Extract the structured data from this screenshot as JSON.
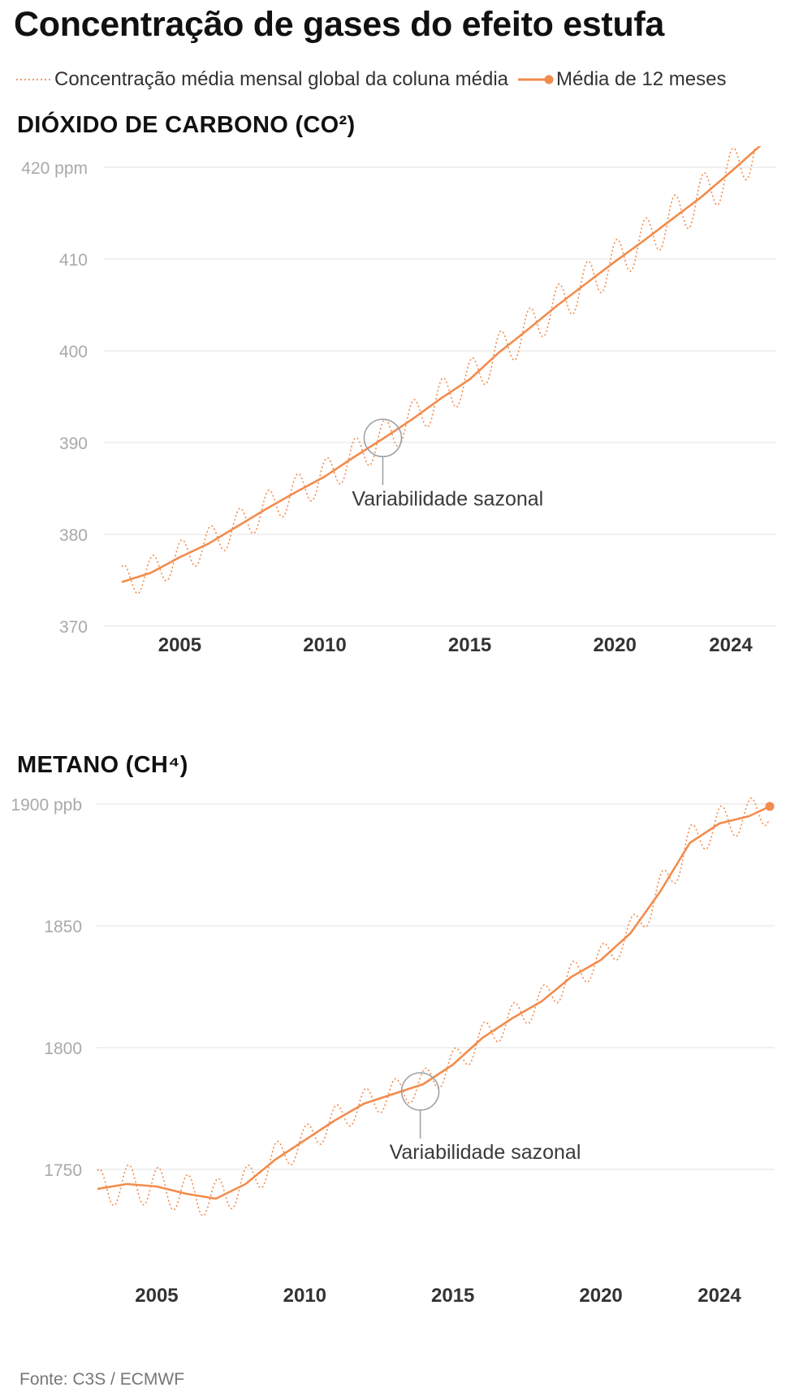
{
  "title": "Concentração de gases do efeito estufa",
  "legend": {
    "monthly_label": "Concentração média mensal global da coluna média",
    "average_label": "Média de 12 meses"
  },
  "colors": {
    "series": "#f28c4d",
    "grid": "#e6e6e6",
    "axis_text": "#a9a9a9",
    "annotation": "#9aa0a6"
  },
  "source": "Fonte: C3S / ECMWF",
  "chart_data": [
    {
      "type": "line",
      "title": "DIÓXIDO DE CARBONO (CO²)",
      "unit": "ppm",
      "ylim": [
        370,
        423
      ],
      "xlim": [
        2003.0,
        2025.4
      ],
      "y_ticks": [
        370,
        380,
        390,
        400,
        410,
        420
      ],
      "y_tick_labels": [
        "370",
        "380",
        "390",
        "400",
        "410",
        "420 ppm"
      ],
      "x_ticks": [
        2005,
        2010,
        2015,
        2020,
        2024
      ],
      "x_tick_labels": [
        "2005",
        "2010",
        "2015",
        "2020",
        "2024"
      ],
      "grid": true,
      "annotation": {
        "text": "Variabilidade sazonal",
        "x": 2012.0,
        "y": 390.5
      },
      "series": [
        {
          "name": "Média de 12 meses",
          "style": "solid",
          "x": [
            2003.0,
            2004.0,
            2005.0,
            2006.0,
            2007.0,
            2008.0,
            2009.0,
            2010.0,
            2011.0,
            2012.0,
            2013.0,
            2014.0,
            2015.0,
            2016.0,
            2017.0,
            2018.0,
            2019.0,
            2020.0,
            2021.0,
            2022.0,
            2023.0,
            2024.0,
            2025.0,
            2025.4
          ],
          "values": [
            374.8,
            375.8,
            377.5,
            379.0,
            380.9,
            382.8,
            384.6,
            386.3,
            388.4,
            390.4,
            392.5,
            394.8,
            396.9,
            399.8,
            402.3,
            404.9,
            407.3,
            409.7,
            412.0,
            414.4,
            416.8,
            419.5,
            422.3,
            423.4
          ]
        },
        {
          "name": "Concentração média mensal global da coluna média",
          "style": "dotted",
          "amplitude": [
            1.8,
            1.8,
            1.8,
            1.8,
            1.8,
            1.9,
            1.9,
            1.9,
            2.0,
            2.0,
            2.0,
            2.1,
            2.1,
            2.2,
            2.2,
            2.2,
            2.3,
            2.3,
            2.3,
            2.4,
            2.4,
            2.4,
            2.4,
            2.4
          ],
          "base": "Média de 12 meses",
          "cycle_years": 1
        }
      ]
    },
    {
      "type": "line",
      "title": "METANO (CH⁴)",
      "unit": "ppb",
      "ylim": [
        1720,
        1910
      ],
      "xlim": [
        2003.0,
        2025.7
      ],
      "y_ticks": [
        1750,
        1800,
        1850,
        1900
      ],
      "y_tick_labels": [
        "1750",
        "1800",
        "1850",
        "1900 ppb"
      ],
      "x_ticks": [
        2005,
        2010,
        2015,
        2020,
        2024
      ],
      "x_tick_labels": [
        "2005",
        "2010",
        "2015",
        "2020",
        "2024"
      ],
      "grid": true,
      "annotation": {
        "text": "Variabilidade sazonal",
        "x": 2013.9,
        "y": 1782
      },
      "series": [
        {
          "name": "Média de 12 meses",
          "style": "solid",
          "x": [
            2003.0,
            2004.0,
            2005.0,
            2006.0,
            2007.0,
            2008.0,
            2009.0,
            2010.0,
            2011.0,
            2012.0,
            2013.0,
            2014.0,
            2015.0,
            2016.0,
            2017.0,
            2018.0,
            2019.0,
            2020.0,
            2021.0,
            2022.0,
            2023.0,
            2024.0,
            2025.0,
            2025.7
          ],
          "values": [
            1742,
            1744,
            1743,
            1740,
            1738,
            1744,
            1754,
            1762,
            1770,
            1777,
            1781,
            1785,
            1793,
            1804,
            1812,
            1819,
            1829,
            1836,
            1847,
            1864,
            1884,
            1892,
            1895,
            1899
          ]
        },
        {
          "name": "Concentração média mensal global da coluna média",
          "style": "dotted",
          "amplitude": [
            8,
            8,
            8,
            8,
            8,
            7,
            7,
            6,
            6,
            6,
            6,
            6,
            6,
            6,
            6,
            6,
            6,
            6,
            6,
            7,
            7,
            7,
            7,
            7
          ],
          "base": "Média de 12 meses",
          "cycle_years": 1
        }
      ]
    }
  ]
}
